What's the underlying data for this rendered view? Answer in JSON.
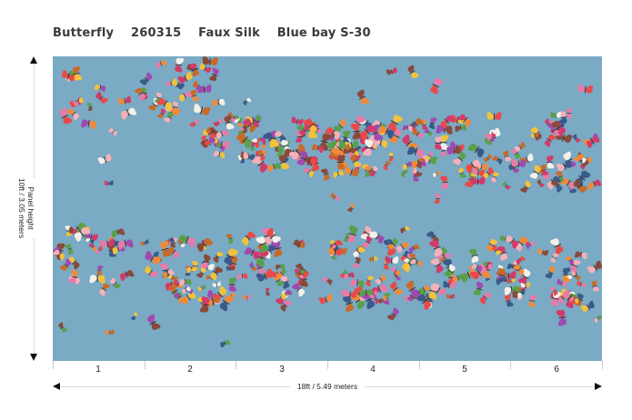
{
  "title": {
    "pattern": "Butterfly",
    "code": "260315",
    "material": "Faux Silk",
    "colorway": "Blue bay S-30"
  },
  "panel": {
    "background_color": "#7aaac4",
    "butterfly_colors": [
      "#e84a4a",
      "#f08a3a",
      "#f2c23a",
      "#5aa04a",
      "#e87aa8",
      "#d23a6a",
      "#f4f0e8",
      "#3a5a8a",
      "#a04ab0",
      "#f6b0b8",
      "#c86a2a",
      "#8a4a3a"
    ]
  },
  "height_dimension": {
    "line1": "Panel height",
    "line2": "10ft / 3.05 meters"
  },
  "width_dimension": {
    "label": "18ft / 5.49 meters"
  },
  "panel_numbers": [
    "1",
    "2",
    "3",
    "4",
    "5",
    "6"
  ]
}
